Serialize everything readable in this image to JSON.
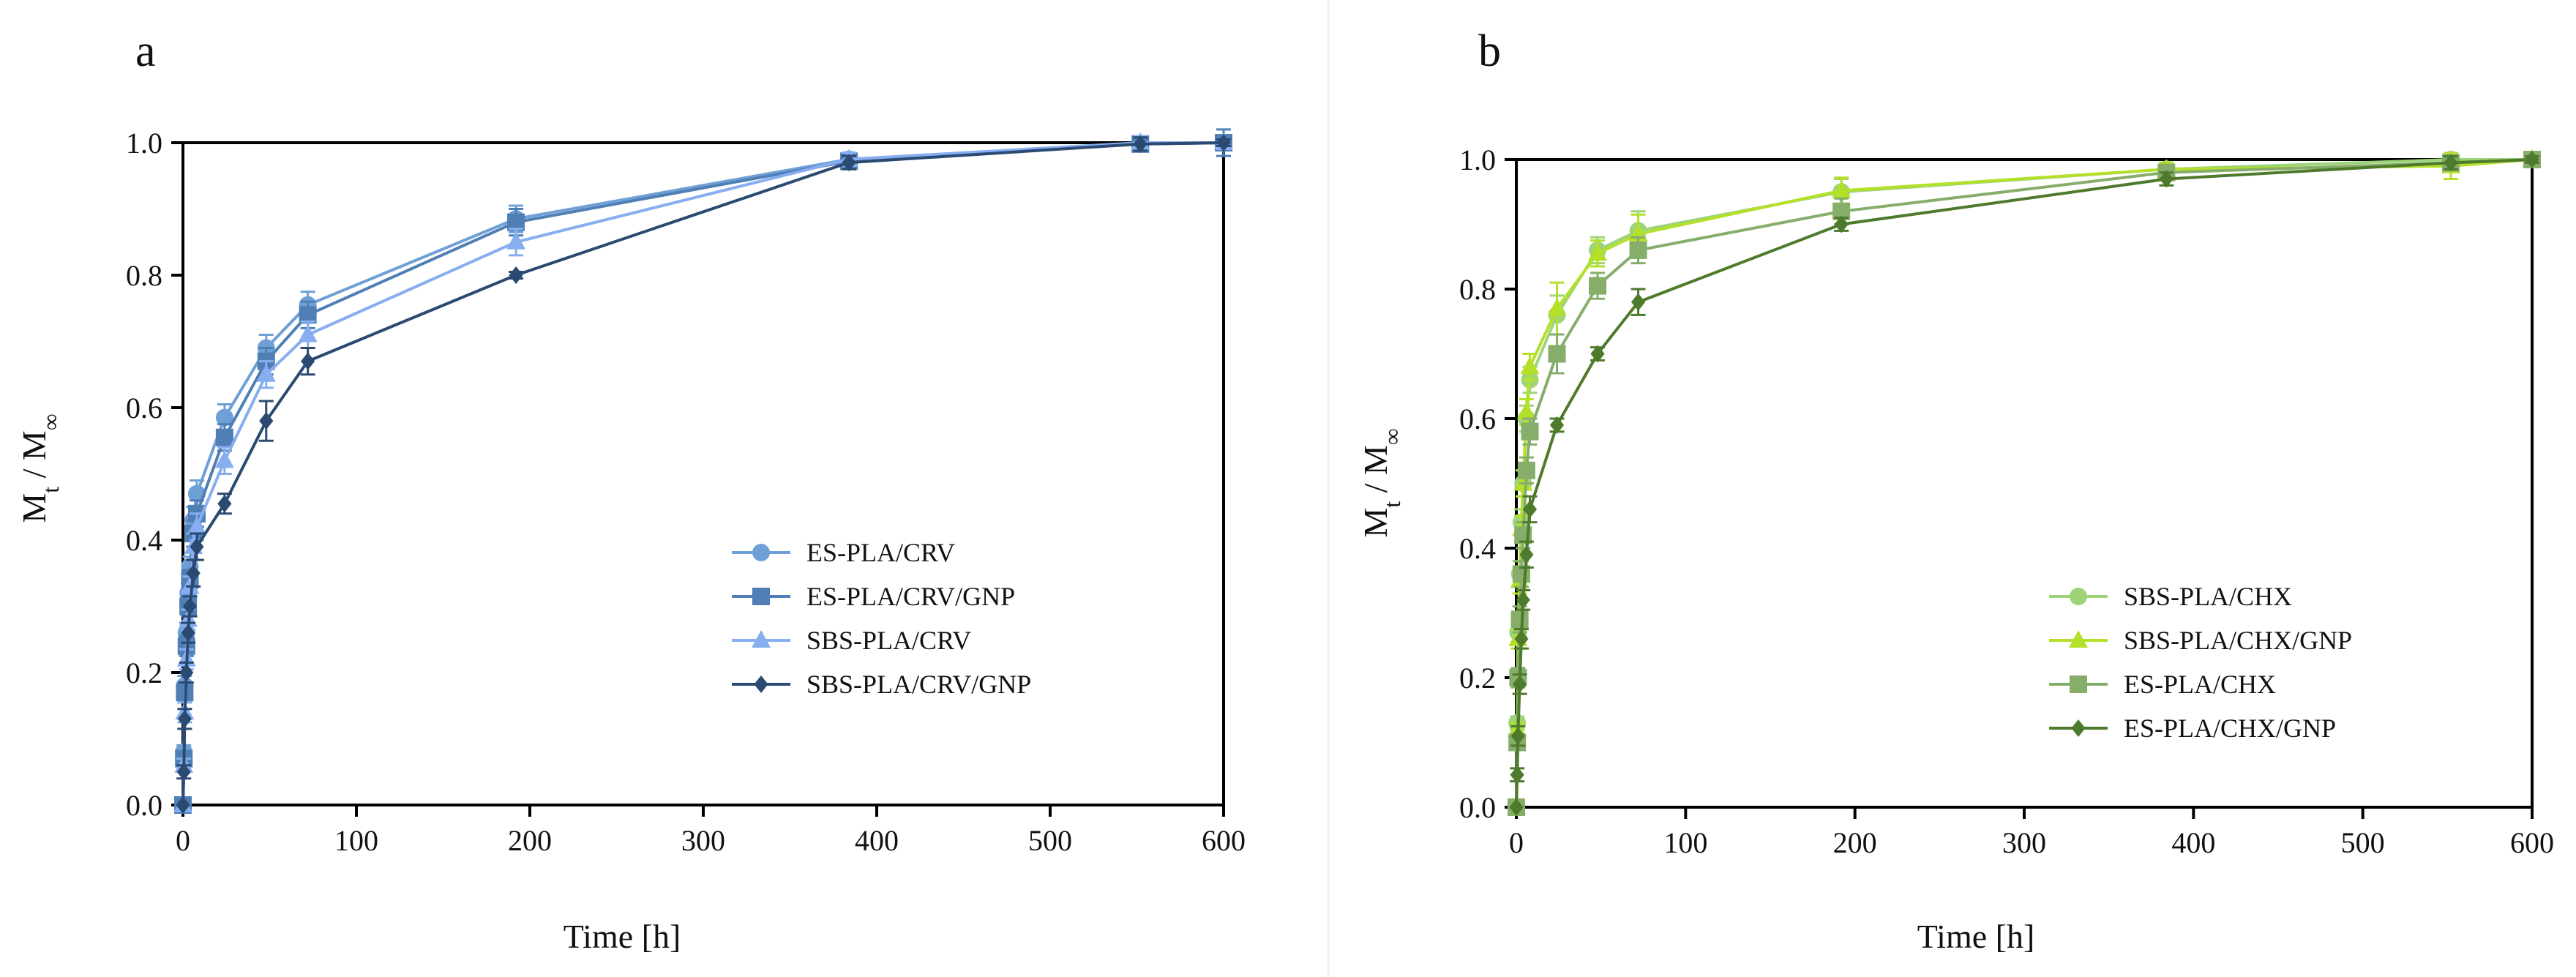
{
  "figure": {
    "panel_letters": [
      "a",
      "b"
    ]
  },
  "chart_data": [
    {
      "type": "line",
      "panel": "a",
      "title": "",
      "xlabel": "Time [h]",
      "ylabel_main": "M",
      "ylabel_sub_t": "t",
      "ylabel_sep": " / M",
      "ylabel_inf": "∞",
      "xlim": [
        0,
        600
      ],
      "ylim": [
        0,
        1.0
      ],
      "xticks": [
        0,
        100,
        200,
        300,
        400,
        500,
        600
      ],
      "yticks": [
        "0.0",
        "0.2",
        "0.4",
        "0.6",
        "0.8",
        "1.0"
      ],
      "x": [
        0,
        0.5,
        1,
        2,
        3,
        4,
        6,
        8,
        24,
        48,
        72,
        192,
        384,
        552,
        600
      ],
      "series": [
        {
          "name": "ES-PLA/CRV",
          "marker": "circle",
          "color": "#6e9fd6",
          "values": [
            0,
            0.08,
            0.18,
            0.26,
            0.32,
            0.36,
            0.43,
            0.47,
            0.585,
            0.69,
            0.755,
            0.885,
            0.975,
            0.998,
            1.0
          ],
          "errors": [
            0,
            0.01,
            0.015,
            0.015,
            0.015,
            0.015,
            0.02,
            0.02,
            0.02,
            0.02,
            0.02,
            0.02,
            0.01,
            0.01,
            0.005
          ]
        },
        {
          "name": "ES-PLA/CRV/GNP",
          "marker": "square",
          "color": "#4f7fb5",
          "values": [
            0,
            0.07,
            0.17,
            0.24,
            0.3,
            0.34,
            0.41,
            0.44,
            0.555,
            0.67,
            0.74,
            0.88,
            0.972,
            0.998,
            1.0
          ],
          "errors": [
            0,
            0.01,
            0.015,
            0.015,
            0.015,
            0.015,
            0.02,
            0.02,
            0.02,
            0.02,
            0.02,
            0.02,
            0.01,
            0.01,
            0.02
          ]
        },
        {
          "name": "SBS-PLA/CRV",
          "marker": "triangle",
          "color": "#86aef0",
          "values": [
            0,
            0.06,
            0.14,
            0.22,
            0.28,
            0.33,
            0.39,
            0.42,
            0.52,
            0.65,
            0.71,
            0.85,
            0.975,
            1.0,
            1.0
          ],
          "errors": [
            0,
            0.01,
            0.015,
            0.015,
            0.015,
            0.015,
            0.02,
            0.02,
            0.02,
            0.02,
            0.02,
            0.02,
            0.01,
            0.01,
            0.005
          ]
        },
        {
          "name": "SBS-PLA/CRV/GNP",
          "marker": "diamond",
          "color": "#2b4a72",
          "values": [
            0,
            0.05,
            0.13,
            0.2,
            0.26,
            0.3,
            0.35,
            0.39,
            0.455,
            0.58,
            0.67,
            0.8,
            0.97,
            0.998,
            1.0
          ],
          "errors": [
            0,
            0.01,
            0.015,
            0.015,
            0.015,
            0.015,
            0.02,
            0.02,
            0.015,
            0.03,
            0.02,
            0.005,
            0.01,
            0.01,
            0.005
          ]
        }
      ]
    },
    {
      "type": "line",
      "panel": "b",
      "title": "",
      "xlabel": "Time [h]",
      "ylabel_main": "M",
      "ylabel_sub_t": "t",
      "ylabel_sep": " / M",
      "ylabel_inf": "∞",
      "xlim": [
        0,
        600
      ],
      "ylim": [
        0,
        1.0
      ],
      "xticks": [
        0,
        100,
        200,
        300,
        400,
        500,
        600
      ],
      "yticks": [
        "0.0",
        "0.2",
        "0.4",
        "0.6",
        "0.8",
        "1.0"
      ],
      "x": [
        0,
        0.5,
        1,
        2,
        3,
        4,
        6,
        8,
        24,
        48,
        72,
        192,
        384,
        552,
        600
      ],
      "series": [
        {
          "name": "SBS-PLA/CHX",
          "marker": "circle",
          "color": "#9dd47a",
          "values": [
            0,
            0.13,
            0.27,
            0.36,
            0.44,
            0.5,
            0.6,
            0.66,
            0.76,
            0.86,
            0.89,
            0.95,
            0.985,
            1.0,
            1.0
          ],
          "errors": [
            0,
            0.01,
            0.015,
            0.02,
            0.02,
            0.02,
            0.02,
            0.02,
            0.03,
            0.02,
            0.03,
            0.02,
            0.01,
            0.01,
            0.005
          ]
        },
        {
          "name": "SBS-PLA/CHX/GNP",
          "marker": "triangle",
          "color": "#b4e02a",
          "values": [
            0,
            0.12,
            0.26,
            0.35,
            0.43,
            0.5,
            0.61,
            0.68,
            0.77,
            0.855,
            0.885,
            0.952,
            0.985,
            0.99,
            1.0
          ],
          "errors": [
            0,
            0.01,
            0.015,
            0.02,
            0.02,
            0.02,
            0.02,
            0.02,
            0.04,
            0.02,
            0.03,
            0.02,
            0.01,
            0.02,
            0.005
          ]
        },
        {
          "name": "ES-PLA/CHX",
          "marker": "square",
          "color": "#86ad6a",
          "values": [
            0,
            0.1,
            0.2,
            0.29,
            0.36,
            0.42,
            0.52,
            0.58,
            0.7,
            0.805,
            0.86,
            0.92,
            0.98,
            0.995,
            1.0
          ],
          "errors": [
            0,
            0.01,
            0.015,
            0.02,
            0.02,
            0.02,
            0.02,
            0.02,
            0.03,
            0.02,
            0.02,
            0.02,
            0.01,
            0.01,
            0.005
          ]
        },
        {
          "name": "ES-PLA/CHX/GNP",
          "marker": "diamond",
          "color": "#4e7a2c",
          "values": [
            0,
            0.05,
            0.11,
            0.19,
            0.26,
            0.32,
            0.39,
            0.46,
            0.59,
            0.7,
            0.78,
            0.9,
            0.97,
            0.995,
            1.0
          ],
          "errors": [
            0,
            0.01,
            0.015,
            0.015,
            0.015,
            0.015,
            0.02,
            0.02,
            0.01,
            0.01,
            0.02,
            0.01,
            0.01,
            0.01,
            0.005
          ]
        }
      ]
    }
  ]
}
